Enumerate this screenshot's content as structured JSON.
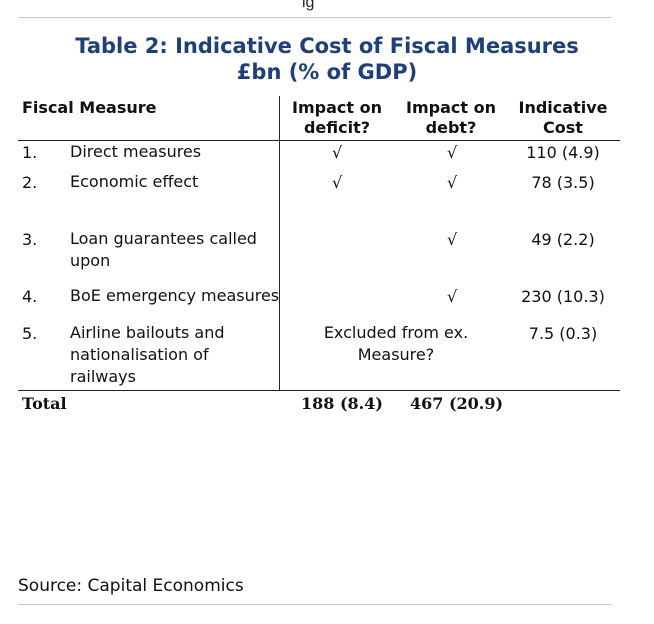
{
  "page_fragment": "ig",
  "title_line1": "Table 2: Indicative Cost of Fiscal Measures",
  "title_line2": "£bn (% of GDP)",
  "headers": {
    "measure": "Fiscal Measure",
    "deficit_l1": "Impact on",
    "deficit_l2": "deficit?",
    "debt_l1": "Impact on",
    "debt_l2": "debt?",
    "cost_l1": "Indicative",
    "cost_l2": "Cost"
  },
  "check_symbol": "√",
  "rows": [
    {
      "num": "1.",
      "measure_l1": "Direct measures",
      "measure_l2": "",
      "measure_l3": "",
      "cost": "110 (4.9)",
      "note_l1": "",
      "note_l2": ""
    },
    {
      "num": "2.",
      "measure_l1": "Economic effect",
      "measure_l2": "",
      "measure_l3": "",
      "cost": "78 (3.5)",
      "note_l1": "",
      "note_l2": ""
    },
    {
      "num": "3.",
      "measure_l1": "Loan guarantees called",
      "measure_l2": "upon",
      "measure_l3": "",
      "cost": "49 (2.2)",
      "note_l1": "",
      "note_l2": ""
    },
    {
      "num": "4.",
      "measure_l1": "BoE emergency measures",
      "measure_l2": "",
      "measure_l3": "",
      "cost": "230 (10.3)",
      "note_l1": "",
      "note_l2": ""
    },
    {
      "num": "5.",
      "measure_l1": "Airline bailouts and",
      "measure_l2": "nationalisation of",
      "measure_l3": "railways",
      "cost": "7.5 (0.3)",
      "note_l1": "Excluded from ex.",
      "note_l2": "Measure?"
    }
  ],
  "total": {
    "label": "Total",
    "deficit": "188 (8.4)",
    "debt": "467 (20.9)"
  },
  "source": "Source: Capital Economics"
}
